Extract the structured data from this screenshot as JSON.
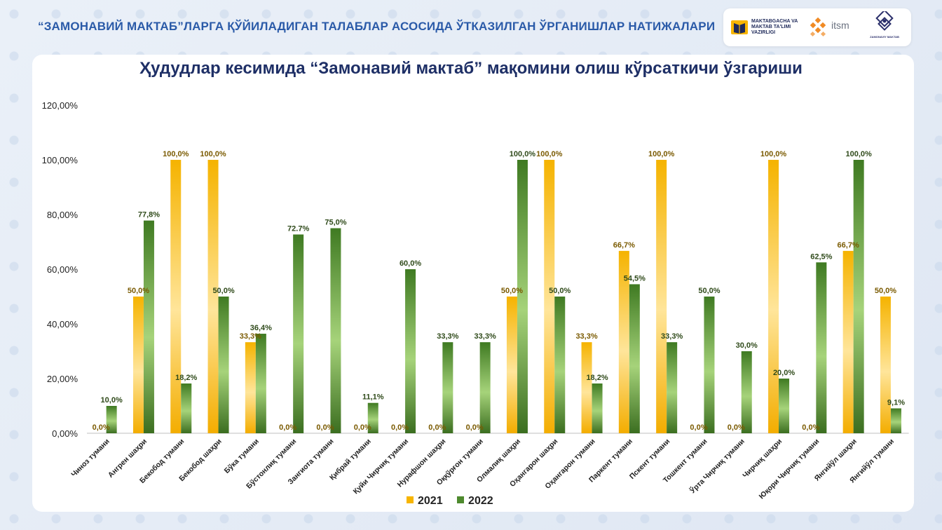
{
  "header": {
    "title": "“ЗАМОНАВИЙ МАКТАБ”ЛАРГА ҚЎЙИЛАДИГАН ТАЛАБЛАР АСОСИДА ЎТКАЗИЛГАН ЎРГАНИШЛАР НАТИЖАЛАРИ"
  },
  "logos": {
    "ministry_text": "MAKTABGACHA VA MAKTAB TA'LIMI VAZIRLIGI",
    "itsm_text": "itsm",
    "zamonaviy_text": "ZAMONAVIY MAKTAB"
  },
  "colors": {
    "s2021": "#f7b500",
    "s2022": "#4e8a2e",
    "label2021": "#7a5a00",
    "label2022": "#2f4a1a",
    "title": "#1e2f66",
    "header": "#2a5aa8"
  },
  "chart_data": {
    "type": "bar",
    "title": "Ҳудудлар кесимида “Замонавий мактаб” мақомини олиш кўрсаткичи ўзгариши",
    "categories": [
      "Чиноз тумани",
      "Ангрен шаҳри",
      "Бекобод тумани",
      "Бекобод шаҳри",
      "Бўка тумани",
      "Бўстонлиқ тумани",
      "Зангиота тумани",
      "Қибрай тумани",
      "Қуйи Чирчиқ тумани",
      "Нурафшон шаҳри",
      "Оққўрғон тумани",
      "Олмалиқ шаҳри",
      "Оҳангарон шаҳри",
      "Оҳангарон тумани",
      "Паркент тумани",
      "Пскент тумани",
      "Тошкент тумани",
      "Ўрта Чирчиқ тумани",
      "Чирчиқ шаҳри",
      "Юқори Чирчиқ тумани",
      "Янгийўл шаҳри",
      "Янгийўл тумани"
    ],
    "series": [
      {
        "name": "2021",
        "values": [
          0,
          50,
          100,
          100,
          33.3,
          0,
          0,
          0,
          0,
          0,
          0,
          50,
          100,
          33.3,
          66.7,
          100,
          0,
          0,
          100,
          0,
          66.7,
          50
        ],
        "labels": [
          "0,0%",
          "50,0%",
          "100,0%",
          "100,0%",
          "33,3%",
          "0,0%",
          "0,0%",
          "0,0%",
          "0,0%",
          "0,0%",
          "0,0%",
          "50,0%",
          "100,0%",
          "33,3%",
          "66,7%",
          "100,0%",
          "0,0%",
          "0,0%",
          "100,0%",
          "0,0%",
          "66,7%",
          "50,0%"
        ]
      },
      {
        "name": "2022",
        "values": [
          10,
          77.8,
          18.2,
          50,
          36.4,
          72.7,
          75,
          11.1,
          60,
          33.3,
          33.3,
          100,
          50,
          18.2,
          54.5,
          33.3,
          50,
          30,
          20,
          62.5,
          100,
          9.1
        ],
        "labels": [
          "10,0%",
          "77,8%",
          "18,2%",
          "50,0%",
          "36,4%",
          "72.7%",
          "75,0%",
          "11,1%",
          "60,0%",
          "33,3%",
          "33,3%",
          "100,0%",
          "50,0%",
          "18,2%",
          "54,5%",
          "33,3%",
          "50,0%",
          "30,0%",
          "20,0%",
          "62,5%",
          "100,0%",
          "9,1%"
        ]
      }
    ],
    "yticks": [
      "0,00%",
      "20,00%",
      "40,00%",
      "60,00%",
      "80,00%",
      "100,00%",
      "120,00%"
    ],
    "ylim": [
      0,
      120
    ],
    "legend": "bottom-center",
    "grid": false
  }
}
